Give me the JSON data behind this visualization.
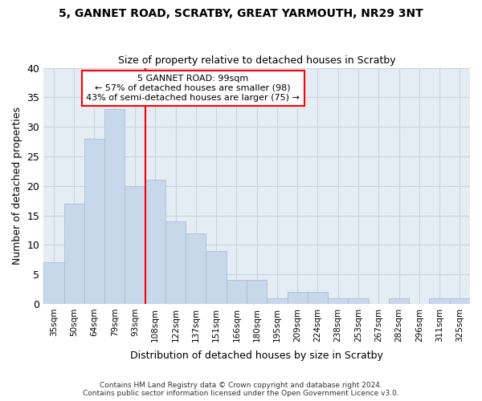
{
  "title1": "5, GANNET ROAD, SCRATBY, GREAT YARMOUTH, NR29 3NT",
  "title2": "Size of property relative to detached houses in Scratby",
  "xlabel": "Distribution of detached houses by size in Scratby",
  "ylabel": "Number of detached properties",
  "categories": [
    "35sqm",
    "50sqm",
    "64sqm",
    "79sqm",
    "93sqm",
    "108sqm",
    "122sqm",
    "137sqm",
    "151sqm",
    "166sqm",
    "180sqm",
    "195sqm",
    "209sqm",
    "224sqm",
    "238sqm",
    "253sqm",
    "267sqm",
    "282sqm",
    "296sqm",
    "311sqm",
    "325sqm"
  ],
  "values": [
    7,
    17,
    28,
    33,
    20,
    21,
    14,
    12,
    9,
    4,
    4,
    1,
    2,
    2,
    1,
    1,
    0,
    1,
    0,
    1,
    1
  ],
  "bar_color": "#c8d8eb",
  "bar_edgecolor": "#a8c0d8",
  "grid_color": "#c8d4e0",
  "background_color": "#e4ecf4",
  "vline_color": "red",
  "vline_index": 4,
  "annotation_lines": [
    "5 GANNET ROAD: 99sqm",
    "← 57% of detached houses are smaller (98)",
    "43% of semi-detached houses are larger (75) →"
  ],
  "annotation_box_color": "white",
  "annotation_box_edgecolor": "red",
  "footer1": "Contains HM Land Registry data © Crown copyright and database right 2024.",
  "footer2": "Contains public sector information licensed under the Open Government Licence v3.0.",
  "ylim": [
    0,
    40
  ],
  "yticks": [
    0,
    5,
    10,
    15,
    20,
    25,
    30,
    35,
    40
  ]
}
